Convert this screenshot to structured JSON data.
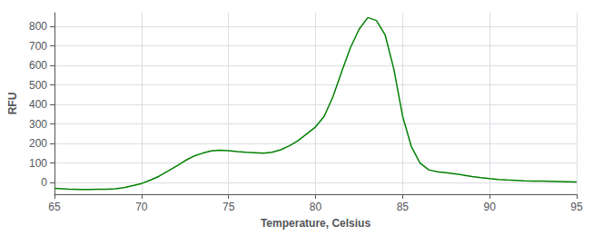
{
  "chart_data": {
    "type": "line",
    "xlabel": "Temperature, Celsius",
    "ylabel": "RFU",
    "x": [
      65.0,
      65.5,
      66.0,
      66.5,
      67.0,
      67.5,
      68.0,
      68.5,
      69.0,
      69.5,
      70.0,
      70.5,
      71.0,
      71.5,
      72.0,
      72.5,
      73.0,
      73.5,
      74.0,
      74.5,
      75.0,
      75.5,
      76.0,
      76.5,
      77.0,
      77.5,
      78.0,
      78.5,
      79.0,
      79.5,
      80.0,
      80.5,
      81.0,
      81.5,
      82.0,
      82.5,
      83.0,
      83.5,
      84.0,
      84.5,
      85.0,
      85.5,
      86.0,
      86.5,
      87.0,
      87.5,
      88.0,
      88.5,
      89.0,
      89.5,
      90.0,
      90.5,
      91.0,
      91.5,
      92.0,
      92.5,
      93.0,
      93.5,
      94.0,
      94.5,
      95.0
    ],
    "values": [
      -30,
      -32,
      -35,
      -36,
      -36,
      -35,
      -34,
      -32,
      -26,
      -16,
      -5,
      12,
      32,
      58,
      84,
      112,
      135,
      150,
      162,
      165,
      163,
      158,
      155,
      153,
      150,
      155,
      168,
      188,
      215,
      250,
      285,
      340,
      440,
      568,
      690,
      785,
      845,
      830,
      755,
      580,
      340,
      185,
      100,
      65,
      55,
      50,
      45,
      38,
      31,
      25,
      20,
      16,
      13,
      11,
      9,
      8,
      7,
      6,
      5,
      4,
      3
    ],
    "color": "#008000",
    "xlim": [
      65,
      95
    ],
    "ylim": [
      -60,
      870
    ],
    "xticks": [
      65,
      70,
      75,
      80,
      85,
      90,
      95
    ],
    "yticks": [
      0,
      100,
      200,
      300,
      400,
      500,
      600,
      700,
      800
    ],
    "grid": true
  }
}
